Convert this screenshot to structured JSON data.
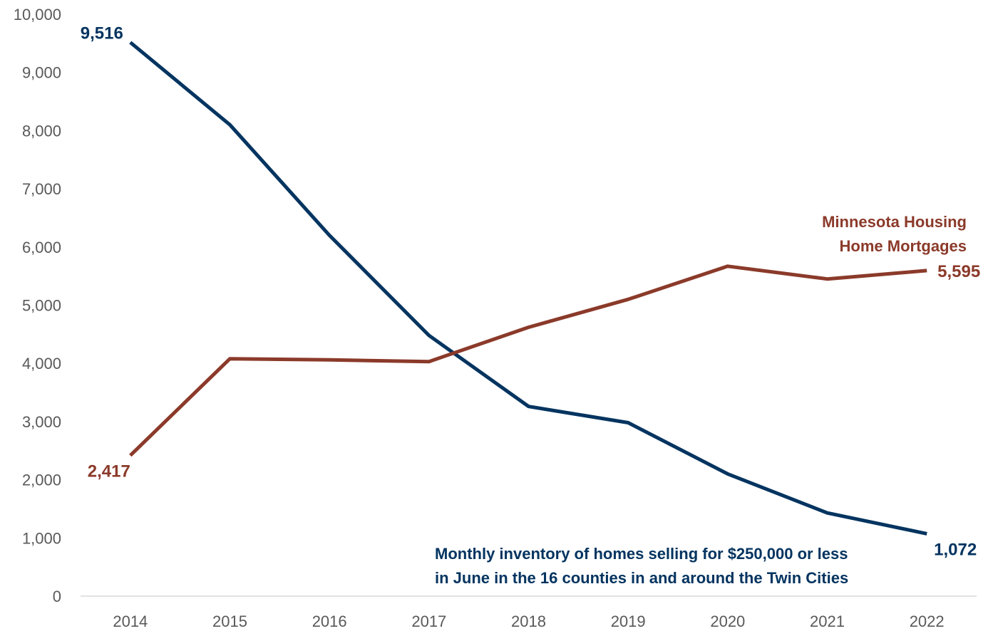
{
  "chart_data": {
    "type": "line",
    "categories": [
      "2014",
      "2015",
      "2016",
      "2017",
      "2018",
      "2019",
      "2020",
      "2021",
      "2022"
    ],
    "ylim": [
      0,
      10000
    ],
    "yticks": [
      0,
      1000,
      2000,
      3000,
      4000,
      5000,
      6000,
      7000,
      8000,
      9000,
      10000
    ],
    "ytick_labels": [
      "0",
      "1,000",
      "2,000",
      "3,000",
      "4,000",
      "5,000",
      "6,000",
      "7,000",
      "8,000",
      "9,000",
      "10,000"
    ],
    "grid": false,
    "series": [
      {
        "id": "inventory",
        "label_lines": [
          "Monthly inventory of homes selling for $250,000 or less",
          "in June in the 16 counties in and around the Twin Cities"
        ],
        "color": "#043460",
        "values": [
          9516,
          8100,
          6200,
          4480,
          3260,
          2980,
          2100,
          1430,
          1072
        ],
        "start_label": "9,516",
        "end_label": "1,072"
      },
      {
        "id": "mortgages",
        "label_lines": [
          "Minnesota Housing",
          "Home Mortgages"
        ],
        "color": "#8b3a2a",
        "values": [
          2417,
          4080,
          4060,
          4030,
          4620,
          5100,
          5670,
          5450,
          5595
        ],
        "start_label": "2,417",
        "end_label": "5,595"
      }
    ]
  }
}
